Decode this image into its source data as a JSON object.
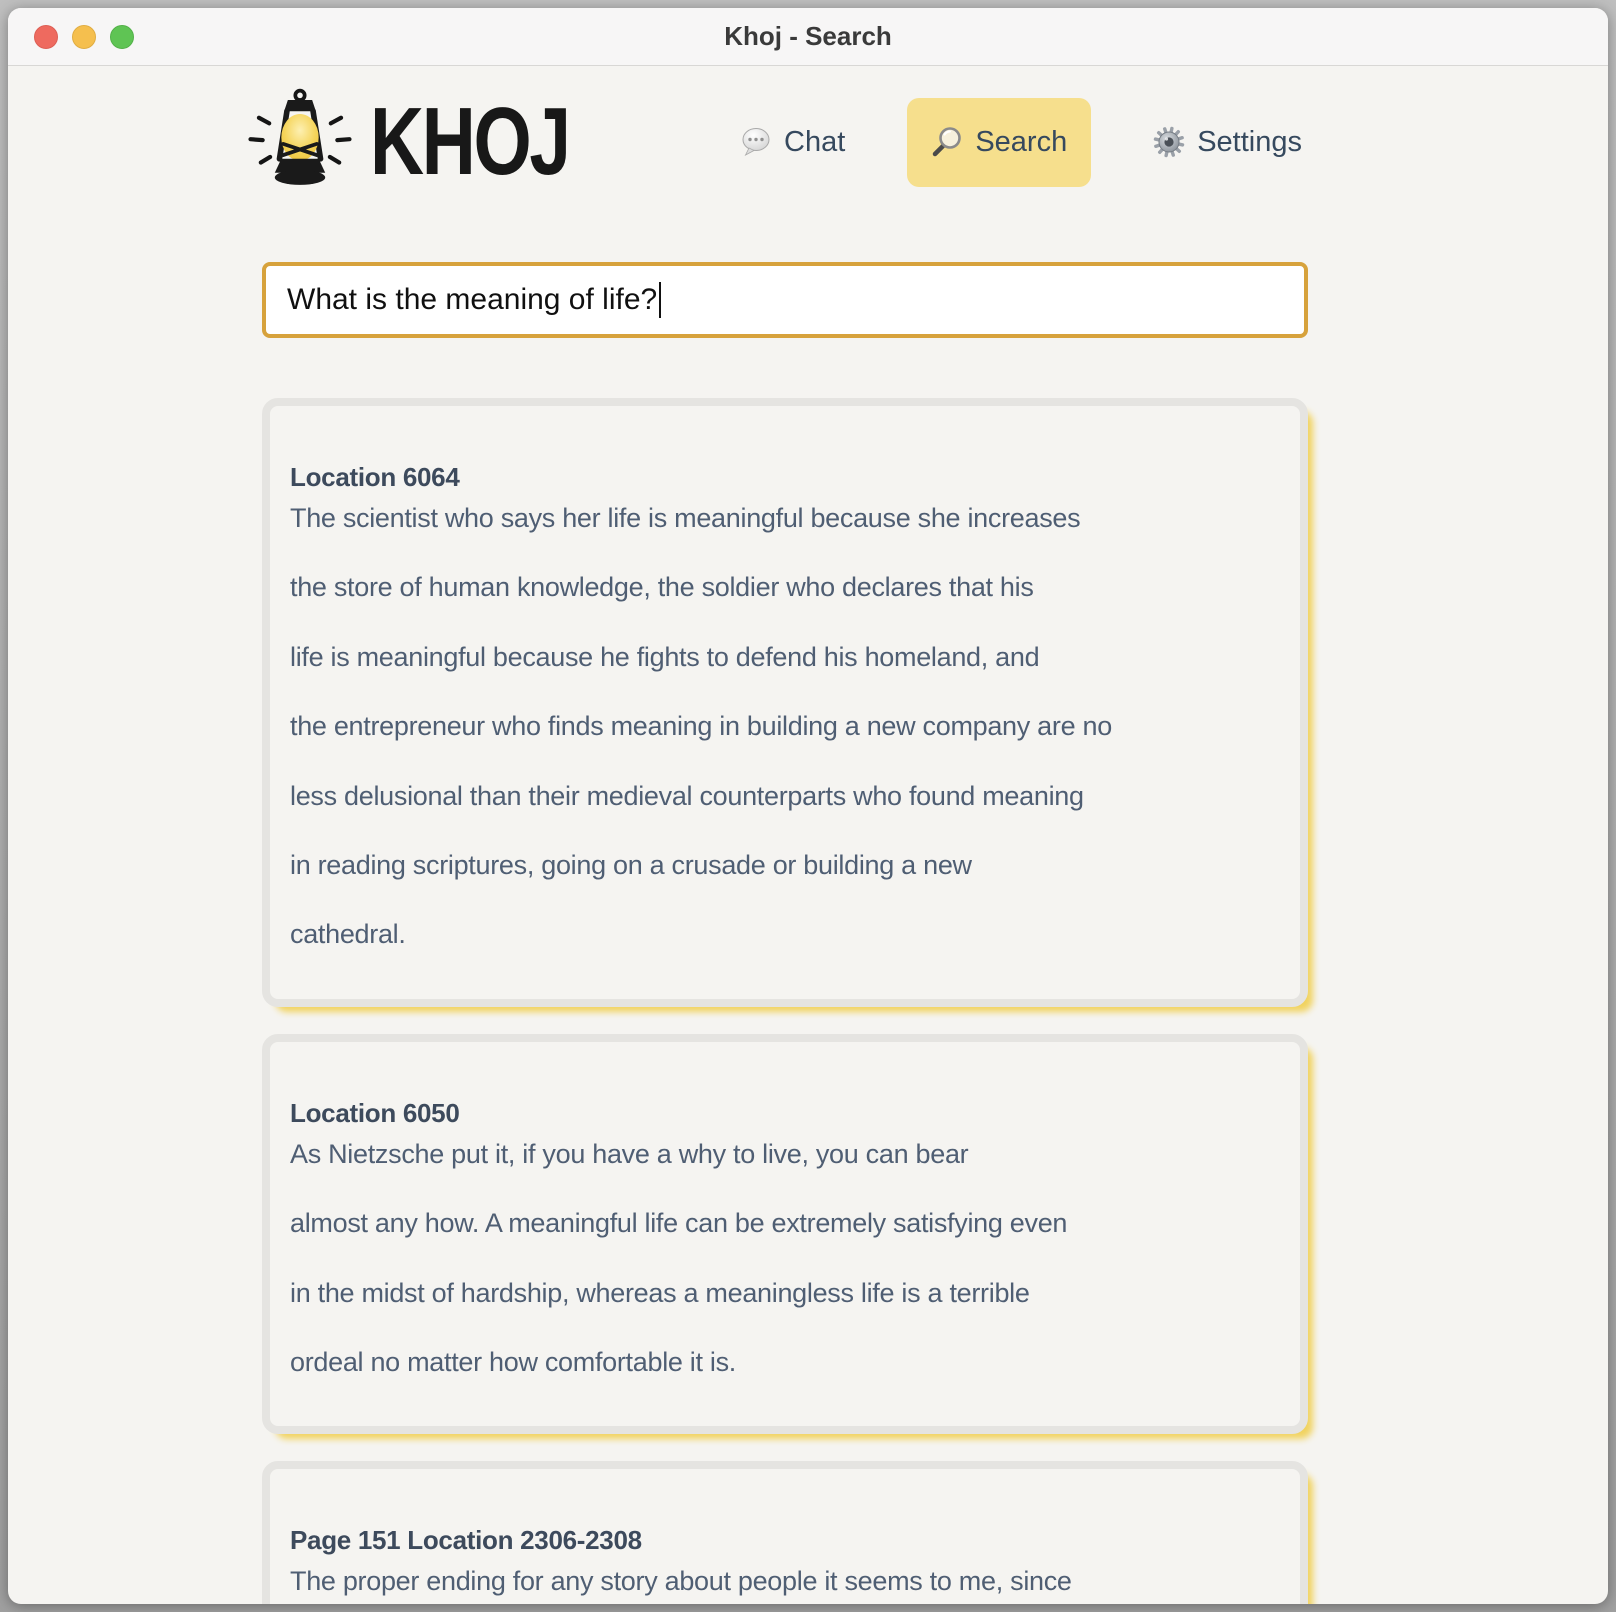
{
  "window": {
    "title": "Khoj - Search"
  },
  "titlebar_buttons": [
    {
      "name": "close",
      "color": "#ee6a5f"
    },
    {
      "name": "minimize",
      "color": "#f5bf4e"
    },
    {
      "name": "zoom",
      "color": "#5fc454"
    }
  ],
  "brand": {
    "name": "KHOJ",
    "icon": "lantern-icon"
  },
  "nav": [
    {
      "label": "Chat",
      "icon": "chat-bubble-icon",
      "active": false
    },
    {
      "label": "Search",
      "icon": "magnifier-icon",
      "active": true
    },
    {
      "label": "Settings",
      "icon": "gear-icon",
      "active": false
    }
  ],
  "search": {
    "query": "What is the meaning of life?"
  },
  "results": [
    {
      "title": "Location 6064",
      "lines": [
        "The scientist who says her life is meaningful because she increases",
        "the store of human knowledge, the soldier who declares that his",
        "life is meaningful because he fights to defend his homeland, and",
        "the entrepreneur who finds meaning in building a new company are no",
        "less delusional than their medieval counterparts who found meaning",
        "in reading scriptures, going on a crusade or building a new",
        "cathedral."
      ]
    },
    {
      "title": "Location 6050",
      "lines": [
        "As Nietzsche put it, if you have a why to live, you can bear",
        "almost any how. A meaningful life can be extremely satisfying even",
        "in the midst of hardship, whereas a meaningless life is a terrible",
        "ordeal no matter how comfortable it is."
      ]
    },
    {
      "title": "Page 151 Location 2306-2308",
      "lines": [
        "The proper ending for any story about people it seems to me, since"
      ]
    }
  ],
  "colors": {
    "accent_yellow": "#f6df8d",
    "input_border": "#d7a23c",
    "card_border": "#e5e4e1",
    "card_shadow_yellow": "#f1d35f",
    "heading_text": "#3d4a5c",
    "body_text": "#4f5e73",
    "traffic_red": "#ee6a5f",
    "traffic_yellow": "#f5bf4e",
    "traffic_green": "#5fc454"
  }
}
